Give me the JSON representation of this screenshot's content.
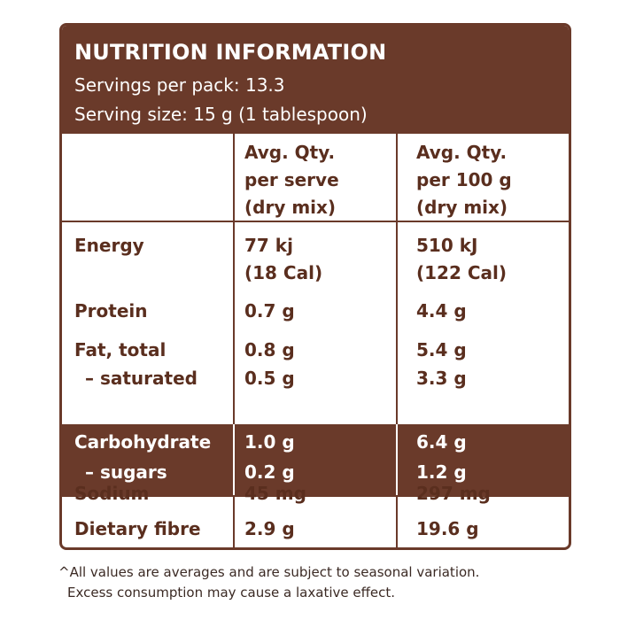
{
  "header": {
    "title": "NUTRITION INFORMATION",
    "servings_per_pack": "Servings per pack: 13.3",
    "serving_size": "Serving size: 15 g (1 tablespoon)"
  },
  "columns": {
    "per_serve": [
      "Avg. Qty.",
      "per serve",
      "(dry mix)"
    ],
    "per_100g": [
      "Avg. Qty.",
      "per 100 g",
      "(dry mix)"
    ]
  },
  "rows": {
    "energy": {
      "label": "Energy",
      "serve": [
        "77 kj",
        "(18 Cal)"
      ],
      "per100": [
        "510 kJ",
        "(122 Cal)"
      ]
    },
    "protein": {
      "label": "Protein",
      "serve": "0.7 g",
      "per100": "4.4 g"
    },
    "fat_total": {
      "label": "Fat, total",
      "serve": "0.8 g",
      "per100": "5.4 g"
    },
    "saturated": {
      "label": "– saturated",
      "serve": "0.5 g",
      "per100": "3.3 g"
    },
    "carbohydrate": {
      "label": "Carbohydrate",
      "serve": "1.0 g",
      "per100": "6.4 g"
    },
    "sugars": {
      "label": "– sugars",
      "serve": "0.2 g",
      "per100": "1.2 g"
    },
    "sodium": {
      "label": "Sodium",
      "serve": "45 mg",
      "per100": "297 mg"
    },
    "fibre": {
      "label": "Dietary fibre",
      "serve": "2.9 g",
      "per100": "19.6 g"
    }
  },
  "footnote": [
    "^All values are averages and are subject to seasonal variation.",
    "Excess consumption may cause a laxative effect."
  ],
  "colors": {
    "brown": "#6a3a2a",
    "text": "#5a2e1e"
  }
}
